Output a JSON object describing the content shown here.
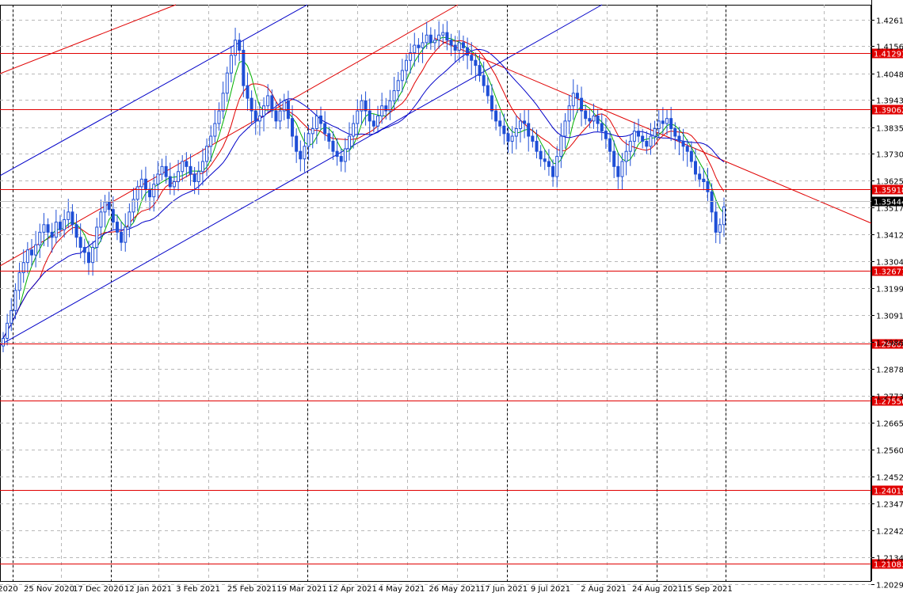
{
  "chart_data": {
    "type": "candlestick",
    "symbol": "",
    "timeframe": "daily",
    "grid": true,
    "background": "#ffffff",
    "colors": {
      "candle": "#1f4fd6",
      "ma_fast": "#00b000",
      "ma_mid": "#e00000",
      "ma_slow": "#0000c8",
      "level_line": "#e00000",
      "trend_red": "#e00000",
      "trend_blue": "#0000c8",
      "price_tag": "#e00000",
      "current_tag": "#000000"
    },
    "y_axis": {
      "range": [
        1.204,
        1.432
      ],
      "ticks": [
        "1.42610",
        "1.41560",
        "1.40480",
        "1.39430",
        "1.38350",
        "1.37300",
        "1.36250",
        "1.35170",
        "1.34120",
        "1.33040",
        "1.31990",
        "1.30910",
        "1.29860",
        "1.28780",
        "1.27730",
        "1.26650",
        "1.25600",
        "1.24520",
        "1.23470",
        "1.22420",
        "1.21340",
        "1.20290"
      ]
    },
    "x_axis": {
      "labels": [
        "2020",
        "25 Nov 2020",
        "17 Dec 2020",
        "12 Jan 2021",
        "3 Feb 2021",
        "25 Feb 2021",
        "19 Mar 2021",
        "12 Apr 2021",
        "4 May 2021",
        "26 May 2021",
        "17 Jun 2021",
        "9 Jul 2021",
        "2 Aug 2021",
        "24 Aug 2021",
        "15 Sep 2021"
      ]
    },
    "horizontal_levels": [
      "1.41291",
      "1.39062",
      "1.35918",
      "1.32671",
      "1.29805",
      "1.27556",
      "1.24015",
      "1.21083"
    ],
    "current_price": "1.35444",
    "closes": [
      1.3,
      1.306,
      1.311,
      1.319,
      1.326,
      1.33,
      1.335,
      1.333,
      1.337,
      1.342,
      1.345,
      1.342,
      1.34,
      1.346,
      1.343,
      1.347,
      1.35,
      1.345,
      1.34,
      1.336,
      1.334,
      1.33,
      1.336,
      1.344,
      1.35,
      1.354,
      1.351,
      1.346,
      1.342,
      1.338,
      1.344,
      1.35,
      1.355,
      1.36,
      1.363,
      1.359,
      1.356,
      1.361,
      1.365,
      1.368,
      1.364,
      1.36,
      1.362,
      1.366,
      1.37,
      1.368,
      1.365,
      1.362,
      1.366,
      1.37,
      1.376,
      1.38,
      1.385,
      1.39,
      1.397,
      1.405,
      1.412,
      1.418,
      1.414,
      1.4,
      1.395,
      1.39,
      1.386,
      1.388,
      1.392,
      1.396,
      1.39,
      1.386,
      1.39,
      1.394,
      1.387,
      1.38,
      1.374,
      1.371,
      1.376,
      1.381,
      1.383,
      1.388,
      1.385,
      1.381,
      1.378,
      1.374,
      1.372,
      1.37,
      1.375,
      1.38,
      1.385,
      1.39,
      1.394,
      1.39,
      1.386,
      1.384,
      1.388,
      1.392,
      1.39,
      1.394,
      1.398,
      1.402,
      1.406,
      1.41,
      1.413,
      1.416,
      1.415,
      1.417,
      1.42,
      1.417,
      1.418,
      1.42,
      1.421,
      1.418,
      1.416,
      1.414,
      1.417,
      1.415,
      1.412,
      1.41,
      1.408,
      1.404,
      1.4,
      1.396,
      1.39,
      1.386,
      1.384,
      1.381,
      1.378,
      1.38,
      1.383,
      1.386,
      1.385,
      1.38,
      1.378,
      1.374,
      1.371,
      1.37,
      1.368,
      1.364,
      1.372,
      1.38,
      1.386,
      1.392,
      1.397,
      1.395,
      1.39,
      1.387,
      1.386,
      1.388,
      1.385,
      1.382,
      1.379,
      1.374,
      1.368,
      1.364,
      1.37,
      1.374,
      1.378,
      1.382,
      1.38,
      1.378,
      1.376,
      1.38,
      1.383,
      1.386,
      1.385,
      1.387,
      1.383,
      1.38,
      1.378,
      1.376,
      1.374,
      1.37,
      1.365,
      1.363,
      1.362,
      1.358,
      1.35,
      1.342,
      1.345,
      1.352
    ]
  }
}
